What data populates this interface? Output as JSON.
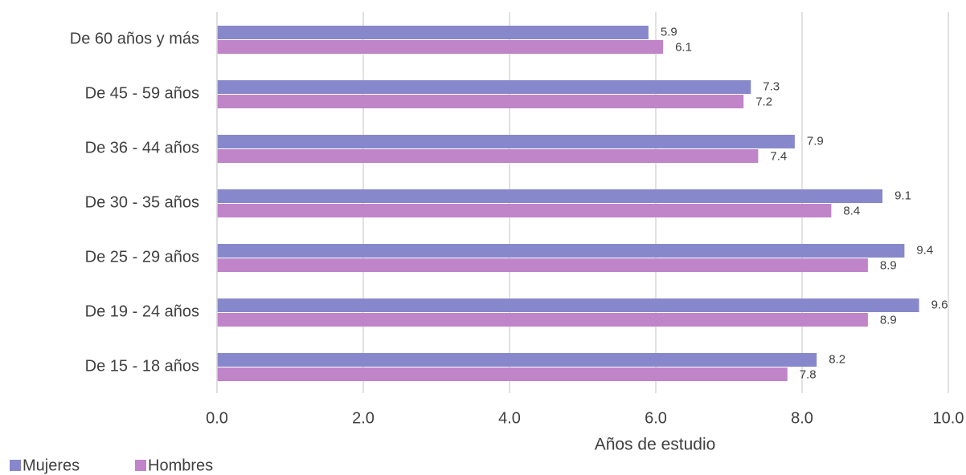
{
  "chart_data": {
    "type": "hbar",
    "categories": [
      "De 60 años y más",
      "De 45 - 59 años",
      "De 36 - 44 años",
      "De 30 - 35 años",
      "De 25 - 29 años",
      "De 19 - 24 años",
      "De 15 - 18 años"
    ],
    "series": [
      {
        "name": "Mujeres",
        "color": "#8788cc",
        "values": [
          5.9,
          7.3,
          7.9,
          9.1,
          9.4,
          9.6,
          8.2
        ]
      },
      {
        "name": "Hombres",
        "color": "#c084c8",
        "values": [
          6.1,
          7.2,
          7.4,
          8.4,
          8.9,
          8.9,
          7.8
        ]
      }
    ],
    "x_label": "Años de estudio",
    "xlim": [
      0,
      10
    ],
    "xticks": [
      {
        "value": 0,
        "label": "0.0"
      },
      {
        "value": 2,
        "label": "2.0"
      },
      {
        "value": 4,
        "label": "4.0"
      },
      {
        "value": 6,
        "label": "6.0"
      },
      {
        "value": 8,
        "label": "8.0"
      },
      {
        "value": 10,
        "label": "10.0"
      }
    ],
    "grid": true,
    "legend": "bottom-left"
  }
}
